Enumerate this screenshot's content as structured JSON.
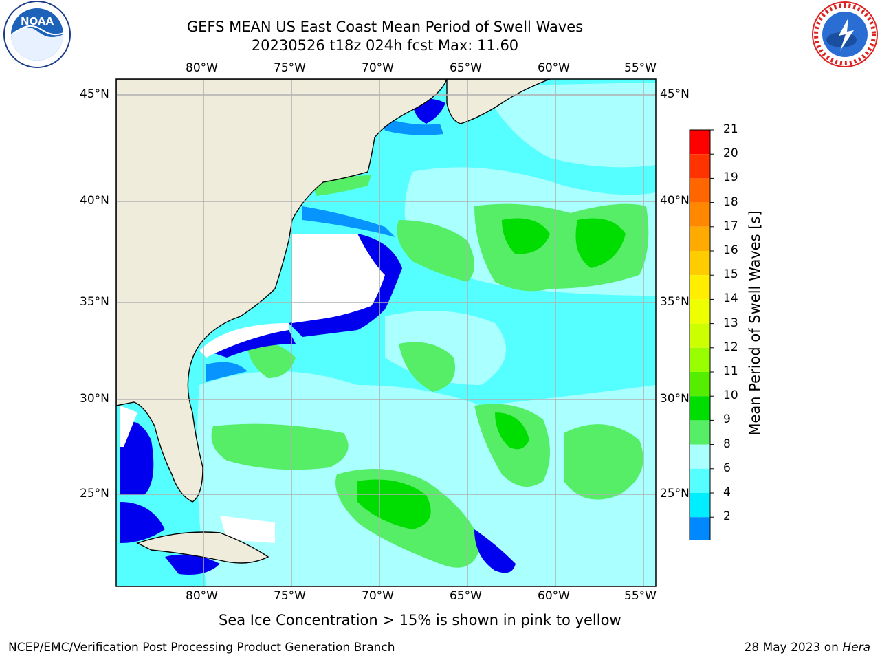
{
  "header": {
    "title_line1": "GEFS MEAN US East Coast Mean Period of Swell Waves",
    "title_line2": "20230526 t18z 024h fcst   Max: 11.60"
  },
  "map": {
    "lon_labels": [
      "80°W",
      "75°W",
      "70°W",
      "65°W",
      "60°W",
      "55°W"
    ],
    "lat_labels": [
      "45°N",
      "40°N",
      "35°N",
      "30°N",
      "25°N"
    ],
    "land_color": "#efecdc",
    "grid_color": "#b0b0b0"
  },
  "colorbar": {
    "label": "Mean Period of Swell Waves [s]",
    "ticks": [
      "21",
      "20",
      "19",
      "18",
      "17",
      "16",
      "15",
      "14",
      "13",
      "12",
      "11",
      "10",
      "9",
      "8",
      "6",
      "4",
      "2"
    ],
    "colors": [
      "#ff0000",
      "#ff3300",
      "#ff6600",
      "#ff8800",
      "#ffaa00",
      "#ffcc00",
      "#ffee00",
      "#eeff00",
      "#ccff00",
      "#99ff00",
      "#55ee00",
      "#00dd00",
      "#55ee66",
      "#aaffff",
      "#55ffff",
      "#00eeff",
      "#0088ff"
    ],
    "min_arrow_color": "#0000ff"
  },
  "note": "Sea Ice Concentration > 15% is shown in pink to yellow",
  "footer": {
    "left": "NCEP/EMC/Verification Post Processing Product Generation Branch",
    "date": "28 May 2023 on ",
    "host": "Hera"
  },
  "logos": {
    "left": "noaa-logo",
    "left_text": "NOAA",
    "right": "nws-logo"
  }
}
